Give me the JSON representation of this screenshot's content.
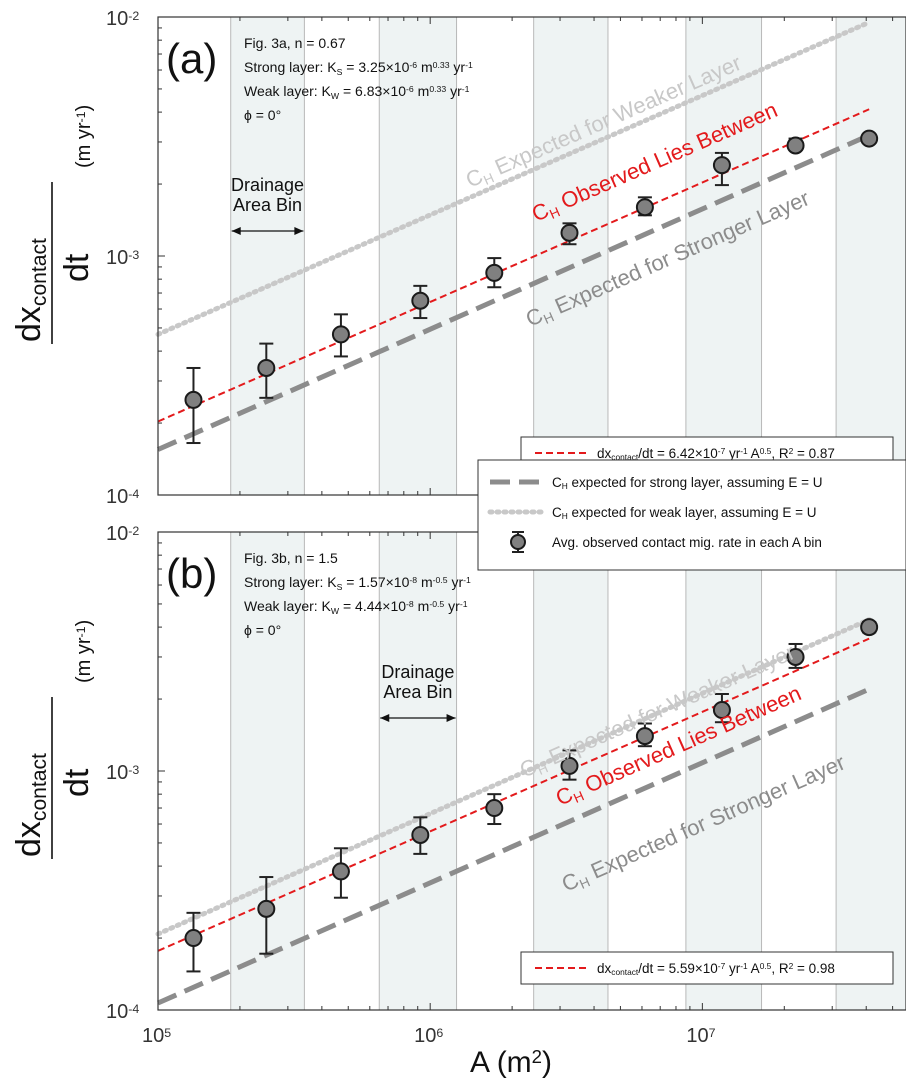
{
  "figure": {
    "shared_xlabel_main": "A (m",
    "shared_xlabel_sup": "2",
    "shared_xlabel_close": ")",
    "shared_ylabel": {
      "numer_main": "dx",
      "numer_sub": "contact",
      "denom": "dt",
      "unit_open": "(m yr",
      "unit_sup": "-1",
      "unit_close": ")"
    },
    "shared_legend": {
      "strong": "expected for strong layer, assuming E = U",
      "weak": "expected for weak layer, assuming E = U",
      "obs": "Avg. observed contact mig. rate in each A bin",
      "ch_main": "C",
      "ch_sub": "H"
    },
    "colors": {
      "fit": "#e31a1c",
      "strong": "#8c8c8c",
      "weak": "#c8c8c8",
      "marker_fill": "#808080",
      "band": "#eef3f3",
      "separator": "#b8b8b8"
    }
  },
  "chart_data": [
    {
      "type": "scatter",
      "panel_label": "(a)",
      "info": {
        "fig": "Fig. 3a, n = 0.67",
        "strong_prefix": "Strong layer: K",
        "strong_sub": "S",
        "strong_value": " = 3.25×10",
        "strong_exp": "-6",
        "strong_unit": " m",
        "strong_unit_exp": "0.33",
        "strong_tail": " yr",
        "strong_tail_exp": "-1",
        "weak_prefix": "Weak layer: K",
        "weak_sub": "W",
        "weak_value": " = 6.83×10",
        "weak_exp": "-6",
        "weak_unit": " m",
        "weak_unit_exp": "0.33",
        "weak_tail": " yr",
        "weak_tail_exp": "-1",
        "phi": "ϕ = 0°"
      },
      "bin_annotation": [
        "Drainage",
        "Area Bin"
      ],
      "bin_arrow_x": [
        185000,
        345000
      ],
      "xscale": "log",
      "yscale": "log",
      "xlim": [
        100000,
        56000000
      ],
      "ylim": [
        0.0001,
        0.01
      ],
      "yticks": [
        {
          "v": 0.0001,
          "m": "10",
          "e": "-4"
        },
        {
          "v": 0.001,
          "m": "10",
          "e": "-3"
        },
        {
          "v": 0.01,
          "m": "10",
          "e": "-2"
        }
      ],
      "bin_edges": [
        185000,
        345000,
        650000,
        1250000,
        2400000,
        4500000,
        8700000,
        16500000,
        31000000
      ],
      "shaded_bins": [
        [
          185000,
          345000
        ],
        [
          650000,
          1250000
        ],
        [
          2400000,
          4500000
        ],
        [
          8700000,
          16500000
        ],
        [
          31000000,
          56000000
        ]
      ],
      "points": {
        "x": [
          135000,
          250000,
          470000,
          920000,
          1720000,
          3250000,
          6150000,
          11800000,
          22000000,
          41000000
        ],
        "y": [
          0.00025,
          0.00034,
          0.00047,
          0.00065,
          0.00085,
          0.00125,
          0.0016,
          0.0024,
          0.0029,
          0.0031
        ],
        "err_low": [
          0.000165,
          0.000255,
          0.00038,
          0.00055,
          0.00074,
          0.00112,
          0.00148,
          0.00198,
          0.00285,
          0.003
        ],
        "err_high": [
          0.00034,
          0.00043,
          0.00057,
          0.00075,
          0.00098,
          0.00137,
          0.00176,
          0.0027,
          0.0031,
          0.0032
        ]
      },
      "fit": {
        "coef": 6.42e-07,
        "exponent": 0.5,
        "r2": 0.87
      },
      "strong_line": {
        "x": [
          100000,
          41000000
        ],
        "y": [
          0.000155,
          0.0032
        ]
      },
      "weak_line": {
        "x": [
          100000,
          41000000
        ],
        "y": [
          0.00047,
          0.0095
        ]
      },
      "curve_labels": {
        "weak": {
          "pre": "C",
          "sub": "H",
          "post": " Expected for Weaker Layer"
        },
        "obs": {
          "pre": "C",
          "sub": "H",
          "post": " Observed Lies Between"
        },
        "strong": {
          "pre": "C",
          "sub": "H",
          "post": " Expected for Stronger Layer"
        }
      },
      "fit_legend": {
        "pre": "dx",
        "sub": "contact",
        "mid": "/dt = 6.42×10",
        "exp": "-7",
        "mid2": " yr",
        "exp2": "-1",
        "mid3": " A",
        "exp3": "0.5",
        "tail": ", R",
        "exp4": "2",
        "tail2": " = 0.87"
      }
    },
    {
      "type": "scatter",
      "panel_label": "(b)",
      "info": {
        "fig": "Fig. 3b, n = 1.5",
        "strong_prefix": "Strong layer: K",
        "strong_sub": "S",
        "strong_value": " = 1.57×10",
        "strong_exp": "-8",
        "strong_unit": " m",
        "strong_unit_exp": "-0.5",
        "strong_tail": " yr",
        "strong_tail_exp": "-1",
        "weak_prefix": "Weak layer: K",
        "weak_sub": "W",
        "weak_value": " = 4.44×10",
        "weak_exp": "-8",
        "weak_unit": " m",
        "weak_unit_exp": "-0.5",
        "weak_tail": " yr",
        "weak_tail_exp": "-1",
        "phi": "ϕ = 0°"
      },
      "bin_annotation": [
        "Drainage",
        "Area Bin"
      ],
      "bin_arrow_x": [
        650000,
        1250000
      ],
      "xscale": "log",
      "yscale": "log",
      "xlim": [
        100000,
        56000000
      ],
      "ylim": [
        0.0001,
        0.01
      ],
      "yticks": [
        {
          "v": 0.0001,
          "m": "10",
          "e": "-4"
        },
        {
          "v": 0.001,
          "m": "10",
          "e": "-3"
        },
        {
          "v": 0.01,
          "m": "10",
          "e": "-2"
        }
      ],
      "bin_edges": [
        185000,
        345000,
        650000,
        1250000,
        2400000,
        4500000,
        8700000,
        16500000,
        31000000
      ],
      "shaded_bins": [
        [
          185000,
          345000
        ],
        [
          650000,
          1250000
        ],
        [
          2400000,
          4500000
        ],
        [
          8700000,
          16500000
        ],
        [
          31000000,
          56000000
        ]
      ],
      "points": {
        "x": [
          135000,
          250000,
          470000,
          920000,
          1720000,
          3250000,
          6150000,
          11800000,
          22000000,
          41000000
        ],
        "y": [
          0.0002,
          0.000265,
          0.00038,
          0.00054,
          0.0007,
          0.00105,
          0.0014,
          0.0018,
          0.003,
          0.004
        ],
        "err_low": [
          0.000145,
          0.000172,
          0.000295,
          0.00045,
          0.0006,
          0.00092,
          0.00127,
          0.0016,
          0.0027,
          0.0038
        ],
        "err_high": [
          0.000255,
          0.00036,
          0.000475,
          0.00064,
          0.0008,
          0.00122,
          0.00158,
          0.0021,
          0.0034,
          0.0042
        ]
      },
      "fit": {
        "coef": 5.59e-07,
        "exponent": 0.5,
        "r2": 0.98
      },
      "strong_line": {
        "x": [
          100000,
          41000000
        ],
        "y": [
          0.000107,
          0.0022
        ]
      },
      "weak_line": {
        "x": [
          100000,
          41000000
        ],
        "y": [
          0.000208,
          0.0043
        ]
      },
      "curve_labels": {
        "weak": {
          "pre": "C",
          "sub": "H",
          "post": " Expected for Weaker Layer"
        },
        "obs": {
          "pre": "C",
          "sub": "H",
          "post": " Observed Lies Between"
        },
        "strong": {
          "pre": "C",
          "sub": "H",
          "post": " Expected for Stronger Layer"
        }
      },
      "fit_legend": {
        "pre": "dx",
        "sub": "contact",
        "mid": "/dt = 5.59×10",
        "exp": "-7",
        "mid2": " yr",
        "exp2": "-1",
        "mid3": " A",
        "exp3": "0.5",
        "tail": ", R",
        "exp4": "2",
        "tail2": " = 0.98"
      }
    }
  ]
}
